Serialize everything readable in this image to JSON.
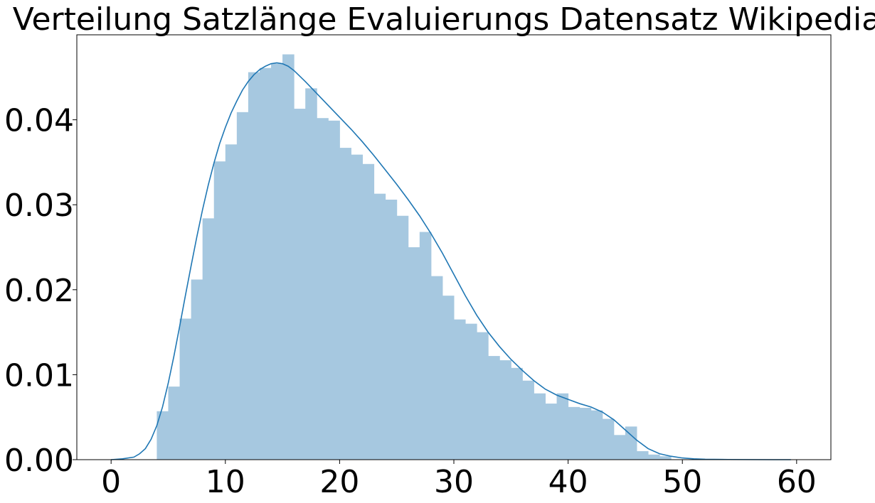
{
  "chart_data": {
    "type": "bar",
    "title": "Verteilung Satzlänge Evaluierungs Datensatz Wikipedia",
    "xlabel": "",
    "ylabel": "",
    "xlim": [
      -3,
      63
    ],
    "ylim": [
      0,
      0.05
    ],
    "xticks": [
      0,
      10,
      20,
      30,
      40,
      50,
      60
    ],
    "yticks": [
      0.0,
      0.01,
      0.02,
      0.03,
      0.04
    ],
    "xtick_labels": [
      "0",
      "10",
      "20",
      "30",
      "40",
      "50",
      "60"
    ],
    "ytick_labels": [
      "0.00",
      "0.01",
      "0.02",
      "0.03",
      "0.04"
    ],
    "grid": false,
    "histogram": {
      "bin_start": 4,
      "bin_width": 1,
      "values": [
        0.0057,
        0.0086,
        0.0166,
        0.0212,
        0.0284,
        0.0351,
        0.0371,
        0.0409,
        0.0456,
        0.0461,
        0.0466,
        0.0477,
        0.0413,
        0.0437,
        0.0402,
        0.0399,
        0.0367,
        0.0359,
        0.0348,
        0.0313,
        0.0306,
        0.0287,
        0.025,
        0.0268,
        0.0216,
        0.0193,
        0.0165,
        0.016,
        0.015,
        0.0122,
        0.0117,
        0.0108,
        0.0093,
        0.0078,
        0.0066,
        0.0078,
        0.0062,
        0.0061,
        0.0058,
        0.0048,
        0.0029,
        0.0039,
        0.001,
        0.0006,
        0.0004
      ]
    },
    "kde": {
      "x": [
        0,
        1,
        2,
        2.5,
        3,
        3.5,
        4,
        4.5,
        5,
        5.5,
        6,
        6.5,
        7,
        7.5,
        8,
        8.5,
        9,
        9.5,
        10,
        10.5,
        11,
        11.5,
        12,
        12.5,
        13,
        13.5,
        14,
        14.5,
        15,
        15.5,
        16,
        17,
        18,
        19,
        20,
        21,
        22,
        23,
        24,
        25,
        26,
        27,
        28,
        29,
        30,
        31,
        32,
        33,
        34,
        35,
        36,
        37,
        38,
        39,
        40,
        41,
        42,
        43,
        44,
        45,
        46,
        47,
        48,
        49,
        50,
        51,
        52,
        54,
        56,
        58,
        59.5
      ],
      "y": [
        0.0,
        0.0001,
        0.0003,
        0.0007,
        0.0013,
        0.0024,
        0.004,
        0.0062,
        0.009,
        0.0122,
        0.0157,
        0.0193,
        0.0228,
        0.0262,
        0.0294,
        0.0323,
        0.0349,
        0.0372,
        0.0391,
        0.0408,
        0.0422,
        0.0435,
        0.0445,
        0.0453,
        0.0459,
        0.0463,
        0.0466,
        0.0467,
        0.0466,
        0.0463,
        0.0458,
        0.0445,
        0.0431,
        0.0417,
        0.0403,
        0.0389,
        0.0374,
        0.0358,
        0.0341,
        0.0324,
        0.0306,
        0.0287,
        0.0266,
        0.0243,
        0.0218,
        0.0193,
        0.017,
        0.015,
        0.0133,
        0.0118,
        0.0105,
        0.0093,
        0.0083,
        0.0076,
        0.0071,
        0.0066,
        0.0062,
        0.0056,
        0.0047,
        0.0035,
        0.0023,
        0.0013,
        0.0007,
        0.0004,
        0.0002,
        0.0001,
        5e-05,
        2e-05,
        1e-05,
        0.0,
        0.0
      ]
    },
    "colors": {
      "bars": "#a6c8e0",
      "kde_line": "#1f77b4",
      "axes": "#000000",
      "background": "#ffffff"
    }
  }
}
